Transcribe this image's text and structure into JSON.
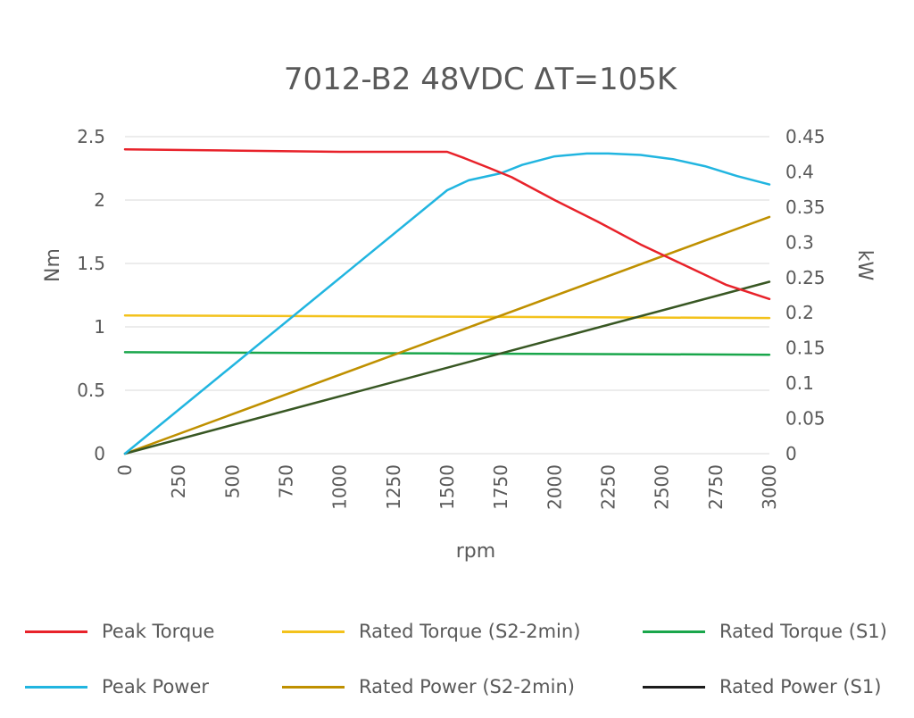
{
  "chart_data": {
    "type": "line",
    "title": "7012-B2 48VDC ΔT=105K",
    "xlabel": "rpm",
    "ylabel": "Nm",
    "y2label": "kW",
    "xlim": [
      0,
      3000
    ],
    "ylim": [
      0,
      2.5
    ],
    "y2lim": [
      0,
      0.45
    ],
    "x_ticks": [
      "0",
      "250",
      "500",
      "750",
      "1000",
      "1250",
      "1500",
      "1750",
      "2000",
      "2250",
      "2500",
      "2750",
      "3000"
    ],
    "y_ticks": [
      "0",
      "0.5",
      "1",
      "1.5",
      "2",
      "2.5"
    ],
    "y2_ticks": [
      "0",
      "0.05",
      "0.1",
      "0.15",
      "0.2",
      "0.25",
      "0.3",
      "0.35",
      "0.4",
      "0.45"
    ],
    "grid": true,
    "legend_position": "bottom",
    "series": [
      {
        "name": "Peak Torque",
        "axis": "left",
        "color": "#e8222a",
        "x": [
          0,
          500,
          1000,
          1500,
          1580,
          1700,
          1800,
          2000,
          2200,
          2400,
          2600,
          2800,
          3000
        ],
        "y": [
          2.4,
          2.39,
          2.38,
          2.38,
          2.33,
          2.25,
          2.18,
          2.0,
          1.83,
          1.65,
          1.49,
          1.33,
          1.22
        ]
      },
      {
        "name": "Rated Torque (S2-2min)",
        "axis": "left",
        "color": "#f3c21c",
        "x": [
          0,
          1500,
          3000
        ],
        "y": [
          1.09,
          1.08,
          1.07
        ]
      },
      {
        "name": "Rated Torque (S1)",
        "axis": "left",
        "color": "#19a64b",
        "x": [
          0,
          1500,
          3000
        ],
        "y": [
          0.8,
          0.79,
          0.78
        ]
      },
      {
        "name": "Peak Power",
        "axis": "right",
        "color": "#21b5e0",
        "x": [
          0,
          1500,
          1600,
          1750,
          1850,
          2000,
          2150,
          2250,
          2400,
          2550,
          2700,
          2850,
          3000
        ],
        "y": [
          0,
          0.374,
          0.388,
          0.398,
          0.41,
          0.422,
          0.426,
          0.426,
          0.424,
          0.418,
          0.408,
          0.394,
          0.382
        ]
      },
      {
        "name": "Rated Power (S2-2min)",
        "axis": "right",
        "color": "#bf9000",
        "x": [
          0,
          3000
        ],
        "y": [
          0,
          0.336
        ]
      },
      {
        "name": "Rated Power (S1)",
        "axis": "right",
        "color": "#1c1c1c",
        "line_color": "#385723",
        "x": [
          0,
          3000
        ],
        "y": [
          0,
          0.244
        ]
      }
    ]
  }
}
